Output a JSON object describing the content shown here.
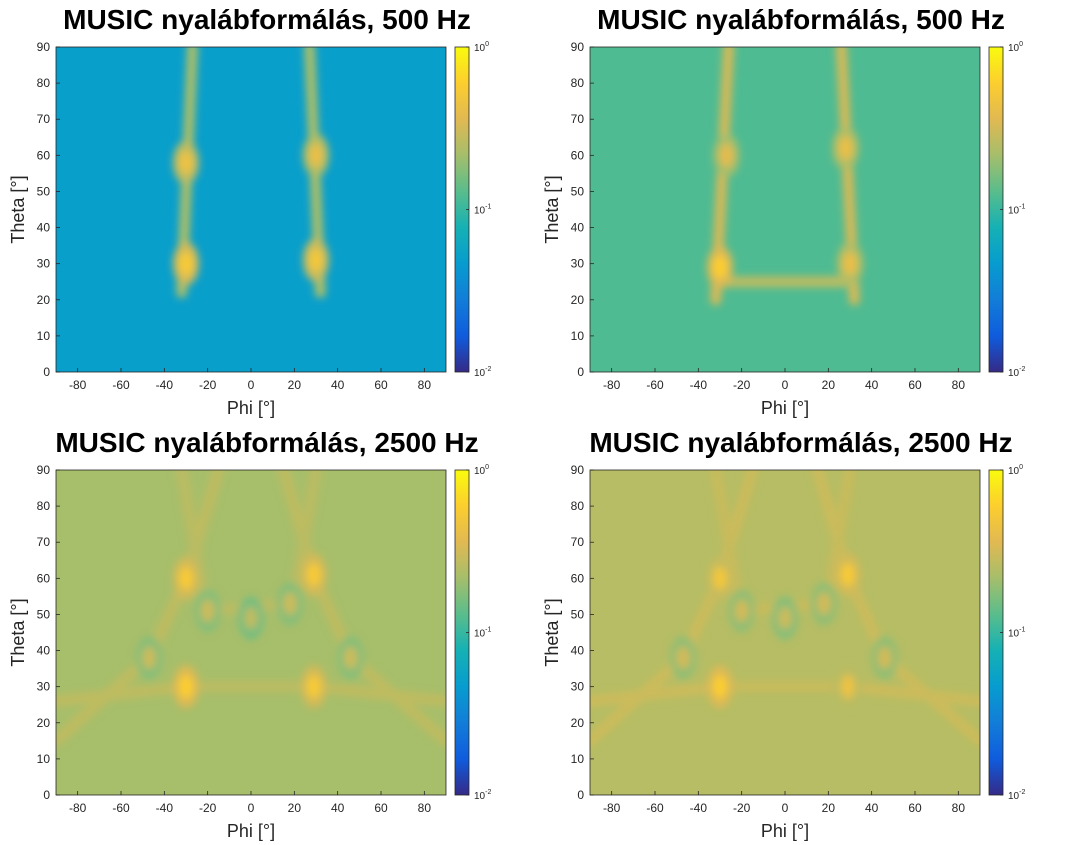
{
  "chart_data": [
    {
      "type": "heatmap",
      "title": "MUSIC nyalábformálás, 500 Hz",
      "xlabel": "Phi [°]",
      "ylabel": "Theta [°]",
      "xlim": [
        -90,
        90
      ],
      "ylim": [
        0,
        90
      ],
      "x_ticks": [
        -80,
        -60,
        -40,
        -20,
        0,
        20,
        40,
        60,
        80
      ],
      "y_ticks": [
        0,
        10,
        20,
        30,
        40,
        50,
        60,
        70,
        80,
        90
      ],
      "colorbar": {
        "scale": "log",
        "range": [
          0.01,
          1
        ],
        "ticks": [
          "10^-2",
          "10^-1",
          "10^0"
        ],
        "colormap": "parula"
      },
      "background_level": 0.05,
      "peaks": [
        {
          "phi": -30,
          "theta": 30,
          "value": 0.55
        },
        {
          "phi": 30,
          "theta": 31,
          "value": 0.5
        },
        {
          "phi": -30,
          "theta": 58,
          "value": 0.45
        },
        {
          "phi": 30,
          "theta": 60,
          "value": 0.42
        }
      ],
      "ridges": [
        {
          "from": [
            -32,
            22
          ],
          "to": [
            -27,
            90
          ],
          "value": 0.22
        },
        {
          "from": [
            32,
            22
          ],
          "to": [
            27,
            90
          ],
          "value": 0.22
        }
      ]
    },
    {
      "type": "heatmap",
      "title": "MUSIC nyalábformálás, 500 Hz",
      "xlabel": "Phi [°]",
      "ylabel": "Theta [°]",
      "xlim": [
        -90,
        90
      ],
      "ylim": [
        0,
        90
      ],
      "x_ticks": [
        -80,
        -60,
        -40,
        -20,
        0,
        20,
        40,
        60,
        80
      ],
      "y_ticks": [
        0,
        10,
        20,
        30,
        40,
        50,
        60,
        70,
        80,
        90
      ],
      "colorbar": {
        "scale": "log",
        "range": [
          0.01,
          1
        ],
        "ticks": [
          "10^-2",
          "10^-1",
          "10^0"
        ],
        "colormap": "parula"
      },
      "background_level": 0.12,
      "peaks": [
        {
          "phi": -30,
          "theta": 29,
          "value": 0.6
        },
        {
          "phi": 30,
          "theta": 30,
          "value": 0.42
        },
        {
          "phi": -27,
          "theta": 60,
          "value": 0.38
        },
        {
          "phi": 28,
          "theta": 62,
          "value": 0.42
        }
      ],
      "ridges": [
        {
          "from": [
            -32,
            20
          ],
          "to": [
            -26,
            90
          ],
          "value": 0.32
        },
        {
          "from": [
            32,
            20
          ],
          "to": [
            26,
            90
          ],
          "value": 0.32
        },
        {
          "from": [
            -30,
            25
          ],
          "to": [
            30,
            25
          ],
          "value": 0.26
        }
      ]
    },
    {
      "type": "heatmap",
      "title": "MUSIC nyalábformálás, 2500 Hz",
      "xlabel": "Phi [°]",
      "ylabel": "Theta [°]",
      "xlim": [
        -90,
        90
      ],
      "ylim": [
        0,
        90
      ],
      "x_ticks": [
        -80,
        -60,
        -40,
        -20,
        0,
        20,
        40,
        60,
        80
      ],
      "y_ticks": [
        0,
        10,
        20,
        30,
        40,
        50,
        60,
        70,
        80,
        90
      ],
      "colorbar": {
        "scale": "log",
        "range": [
          0.01,
          1
        ],
        "ticks": [
          "10^-2",
          "10^-1",
          "10^0"
        ],
        "colormap": "parula"
      },
      "background_level": 0.22,
      "peaks": [
        {
          "phi": -30,
          "theta": 30,
          "value": 0.6
        },
        {
          "phi": 29,
          "theta": 30,
          "value": 0.55
        },
        {
          "phi": -30,
          "theta": 60,
          "value": 0.55
        },
        {
          "phi": 29,
          "theta": 61,
          "value": 0.55
        },
        {
          "phi": -20,
          "theta": 51,
          "value": 0.3
        },
        {
          "phi": 18,
          "theta": 53,
          "value": 0.3
        },
        {
          "phi": -47,
          "theta": 38,
          "value": 0.3
        },
        {
          "phi": 46,
          "theta": 38,
          "value": 0.3
        },
        {
          "phi": 0,
          "theta": 49,
          "value": 0.27
        }
      ],
      "ridges": [
        {
          "from": [
            -90,
            26
          ],
          "to": [
            -30,
            30
          ],
          "value": 0.27
        },
        {
          "from": [
            -90,
            15
          ],
          "to": [
            -47,
            38
          ],
          "value": 0.27
        },
        {
          "from": [
            -47,
            38
          ],
          "to": [
            -30,
            60
          ],
          "value": 0.27
        },
        {
          "from": [
            -30,
            60
          ],
          "to": [
            -15,
            90
          ],
          "value": 0.27
        },
        {
          "from": [
            90,
            26
          ],
          "to": [
            29,
            30
          ],
          "value": 0.27
        },
        {
          "from": [
            90,
            15
          ],
          "to": [
            46,
            38
          ],
          "value": 0.27
        },
        {
          "from": [
            46,
            38
          ],
          "to": [
            29,
            61
          ],
          "value": 0.27
        },
        {
          "from": [
            29,
            61
          ],
          "to": [
            15,
            90
          ],
          "value": 0.27
        },
        {
          "from": [
            -30,
            30
          ],
          "to": [
            29,
            30
          ],
          "value": 0.26
        },
        {
          "from": [
            -20,
            51
          ],
          "to": [
            18,
            53
          ],
          "value": 0.26
        },
        {
          "from": [
            -22,
            55
          ],
          "to": [
            -32,
            90
          ],
          "value": 0.26
        },
        {
          "from": [
            20,
            55
          ],
          "to": [
            30,
            90
          ],
          "value": 0.26
        }
      ]
    },
    {
      "type": "heatmap",
      "title": "MUSIC nyalábformálás, 2500 Hz",
      "xlabel": "Phi [°]",
      "ylabel": "Theta [°]",
      "xlim": [
        -90,
        90
      ],
      "ylim": [
        0,
        90
      ],
      "x_ticks": [
        -80,
        -60,
        -40,
        -20,
        0,
        20,
        40,
        60,
        80
      ],
      "y_ticks": [
        0,
        10,
        20,
        30,
        40,
        50,
        60,
        70,
        80,
        90
      ],
      "colorbar": {
        "scale": "log",
        "range": [
          0.01,
          1
        ],
        "ticks": [
          "10^-2",
          "10^-1",
          "10^0"
        ],
        "colormap": "parula"
      },
      "background_level": 0.25,
      "peaks": [
        {
          "phi": -30,
          "theta": 30,
          "value": 0.6
        },
        {
          "phi": 29,
          "theta": 30,
          "value": 0.45
        },
        {
          "phi": -30,
          "theta": 60,
          "value": 0.5
        },
        {
          "phi": 29,
          "theta": 61,
          "value": 0.55
        },
        {
          "phi": -20,
          "theta": 51,
          "value": 0.32
        },
        {
          "phi": 18,
          "theta": 53,
          "value": 0.32
        },
        {
          "phi": -47,
          "theta": 38,
          "value": 0.32
        },
        {
          "phi": 46,
          "theta": 38,
          "value": 0.32
        },
        {
          "phi": 0,
          "theta": 49,
          "value": 0.3
        }
      ],
      "ridges": [
        {
          "from": [
            -90,
            26
          ],
          "to": [
            -30,
            30
          ],
          "value": 0.3
        },
        {
          "from": [
            -90,
            15
          ],
          "to": [
            -47,
            38
          ],
          "value": 0.3
        },
        {
          "from": [
            -47,
            38
          ],
          "to": [
            -30,
            60
          ],
          "value": 0.3
        },
        {
          "from": [
            -30,
            60
          ],
          "to": [
            -15,
            90
          ],
          "value": 0.3
        },
        {
          "from": [
            90,
            26
          ],
          "to": [
            29,
            30
          ],
          "value": 0.3
        },
        {
          "from": [
            90,
            15
          ],
          "to": [
            46,
            38
          ],
          "value": 0.3
        },
        {
          "from": [
            46,
            38
          ],
          "to": [
            29,
            61
          ],
          "value": 0.3
        },
        {
          "from": [
            29,
            61
          ],
          "to": [
            15,
            90
          ],
          "value": 0.3
        },
        {
          "from": [
            -30,
            30
          ],
          "to": [
            29,
            30
          ],
          "value": 0.29
        },
        {
          "from": [
            -20,
            51
          ],
          "to": [
            18,
            53
          ],
          "value": 0.29
        },
        {
          "from": [
            -22,
            55
          ],
          "to": [
            -32,
            90
          ],
          "value": 0.29
        },
        {
          "from": [
            20,
            55
          ],
          "to": [
            30,
            90
          ],
          "value": 0.29
        }
      ]
    }
  ]
}
